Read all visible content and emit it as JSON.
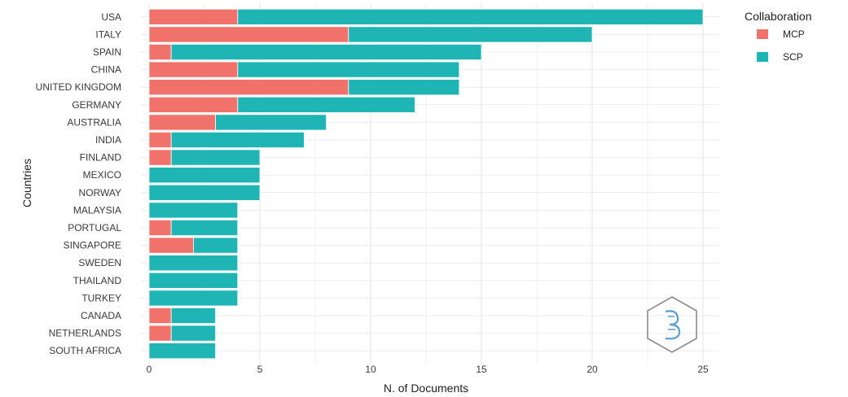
{
  "chart_data": {
    "type": "bar",
    "orientation": "horizontal",
    "stacked": true,
    "categories": [
      "USA",
      "ITALY",
      "SPAIN",
      "CHINA",
      "UNITED KINGDOM",
      "GERMANY",
      "AUSTRALIA",
      "INDIA",
      "FINLAND",
      "MEXICO",
      "NORWAY",
      "MALAYSIA",
      "PORTUGAL",
      "SINGAPORE",
      "SWEDEN",
      "THAILAND",
      "TURKEY",
      "CANADA",
      "NETHERLANDS",
      "SOUTH AFRICA"
    ],
    "series": [
      {
        "name": "MCP",
        "color": "#f0726a",
        "values": [
          4,
          9,
          1,
          4,
          9,
          4,
          3,
          1,
          1,
          0,
          0,
          0,
          1,
          2,
          0,
          0,
          0,
          1,
          1,
          0
        ]
      },
      {
        "name": "SCP",
        "color": "#1fb5b5",
        "values": [
          21,
          11,
          14,
          10,
          5,
          8,
          5,
          6,
          4,
          5,
          5,
          4,
          3,
          2,
          4,
          4,
          4,
          2,
          2,
          3
        ]
      }
    ],
    "xlabel": "N. of Documents",
    "ylabel": "Countries",
    "xlim": [
      0,
      25
    ],
    "xticks": [
      0,
      5,
      10,
      15,
      20,
      25
    ],
    "grid": true,
    "legend": {
      "title": "Collaboration",
      "placement": "right"
    }
  }
}
